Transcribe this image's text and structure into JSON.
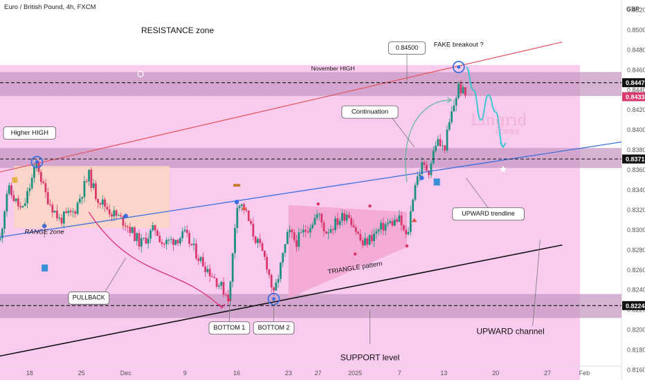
{
  "header": {
    "symbol_title": "Euro / British Pound, 4h, FXCM",
    "currency": "GBP"
  },
  "chart_data": {
    "type": "candlestick",
    "title": "Euro / British Pound, 4h, FXCM",
    "y_unit": "GBP",
    "ylim": [
      0.815,
      0.853
    ],
    "y_ticks": [
      "0.85200",
      "0.85000",
      "0.84800",
      "0.84600",
      "0.84400",
      "0.84200",
      "0.84000",
      "0.83800",
      "0.83600",
      "0.83400",
      "0.83200",
      "0.83000",
      "0.82800",
      "0.82600",
      "0.82400",
      "0.82200",
      "0.82000",
      "0.81800",
      "0.81600"
    ],
    "x_ticks": [
      "18",
      "25",
      "Dec",
      "9",
      "16",
      "23",
      "27",
      "2025",
      "7",
      "13",
      "20",
      "27",
      "Feb"
    ],
    "x_range": [
      "2024-11-14",
      "2025-02-06"
    ],
    "price_levels": [
      {
        "label": "0.84473",
        "value": 0.84473,
        "style": "dashed"
      },
      {
        "label": "0.83710",
        "value": 0.8371,
        "style": "dashed"
      },
      {
        "label": "0.82244",
        "value": 0.82244,
        "style": "dashed"
      }
    ],
    "current_price": {
      "label": "0.84333",
      "value": 0.84333
    },
    "zones": [
      {
        "name": "resistance",
        "from": 0.8434,
        "to": 0.8458
      },
      {
        "name": "middle",
        "from": 0.8362,
        "to": 0.8382
      },
      {
        "name": "support",
        "from": 0.8212,
        "to": 0.8236
      }
    ],
    "price_path": [
      [
        "2024-11-14",
        0.829
      ],
      [
        "2024-11-15",
        0.8342
      ],
      [
        "2024-11-17",
        0.8318
      ],
      [
        "2024-11-19",
        0.8368
      ],
      [
        "2024-11-20",
        0.8338
      ],
      [
        "2024-11-22",
        0.831
      ],
      [
        "2024-11-24",
        0.8318
      ],
      [
        "2024-11-26",
        0.8355
      ],
      [
        "2024-11-27",
        0.8334
      ],
      [
        "2024-11-29",
        0.8318
      ],
      [
        "2024-12-01",
        0.8307
      ],
      [
        "2024-12-03",
        0.8286
      ],
      [
        "2024-12-05",
        0.8302
      ],
      [
        "2024-12-06",
        0.8286
      ],
      [
        "2024-12-09",
        0.8295
      ],
      [
        "2024-12-11",
        0.8271
      ],
      [
        "2024-12-13",
        0.8252
      ],
      [
        "2024-12-15",
        0.8232
      ],
      [
        "2024-12-16",
        0.8328
      ],
      [
        "2024-12-17",
        0.8322
      ],
      [
        "2024-12-18",
        0.83
      ],
      [
        "2024-12-20",
        0.8268
      ],
      [
        "2024-12-21",
        0.8234
      ],
      [
        "2024-12-23",
        0.8298
      ],
      [
        "2024-12-24",
        0.8288
      ],
      [
        "2024-12-27",
        0.8316
      ],
      [
        "2024-12-28",
        0.8298
      ],
      [
        "2024-12-31",
        0.8318
      ],
      [
        "2025-01-02",
        0.8285
      ],
      [
        "2025-01-05",
        0.8305
      ],
      [
        "2025-01-07",
        0.831
      ],
      [
        "2025-01-08",
        0.829
      ],
      [
        "2025-01-09",
        0.8345
      ],
      [
        "2025-01-10",
        0.8364
      ],
      [
        "2025-01-11",
        0.836
      ],
      [
        "2025-01-12",
        0.839
      ],
      [
        "2025-01-13",
        0.838
      ],
      [
        "2025-01-14",
        0.8415
      ],
      [
        "2025-01-15",
        0.8444
      ],
      [
        "2025-01-16",
        0.8433
      ]
    ],
    "forecast_path": [
      [
        "2025-01-16",
        0.8463
      ],
      [
        "2025-01-17",
        0.844
      ],
      [
        "2025-01-18",
        0.841
      ],
      [
        "2025-01-19",
        0.8435
      ],
      [
        "2025-01-20",
        0.8418
      ],
      [
        "2025-01-21",
        0.8383
      ]
    ],
    "lines": [
      {
        "name": "resistance-trendline",
        "from": [
          "2024-11-14",
          0.8358
        ],
        "to": [
          "2025-01-29",
          0.8488
        ]
      },
      {
        "name": "upward-trendline",
        "from": [
          "2024-11-14",
          0.8293
        ],
        "to": [
          "2025-02-06",
          0.8388
        ]
      },
      {
        "name": "support-trendline",
        "from": [
          "2024-11-14",
          0.8174
        ],
        "to": [
          "2025-01-29",
          0.8285
        ]
      }
    ],
    "triangle": [
      [
        "2024-12-23",
        0.8232
      ],
      [
        "2024-12-23",
        0.8325
      ],
      [
        "2025-01-08",
        0.8318
      ],
      [
        "2025-01-08",
        0.8283
      ]
    ],
    "annotations": [
      {
        "text": "RESISTANCE zone",
        "date": "2024-12-08",
        "price": 0.8499
      },
      {
        "text": "Higher HIGH",
        "date": "2024-11-18",
        "price": 0.8397,
        "boxed": true
      },
      {
        "text": "November HIGH",
        "date": "2024-12-29",
        "price": 0.8461,
        "boxed": false
      },
      {
        "text": "0.84500",
        "date": "2025-01-08",
        "price": 0.8482,
        "boxed": true
      },
      {
        "text": "FAKE breakout ?",
        "date": "2025-01-15",
        "price": 0.8485,
        "boxed": false
      },
      {
        "text": "Continuation",
        "date": "2025-01-03",
        "price": 0.8418,
        "boxed": true
      },
      {
        "text": "RANGE zone",
        "date": "2024-11-20",
        "price": 0.8298,
        "italic": true
      },
      {
        "text": "PULLBACK",
        "date": "2024-11-26",
        "price": 0.8232,
        "boxed": true
      },
      {
        "text": "BOTTOM 1",
        "date": "2024-12-15",
        "price": 0.8202,
        "boxed": true
      },
      {
        "text": "BOTTOM 2",
        "date": "2024-12-21",
        "price": 0.8202,
        "boxed": true
      },
      {
        "text": "TRIANGLE pattern",
        "date": "2025-01-01",
        "price": 0.8262,
        "rotated": true
      },
      {
        "text": "UPWARD trendline",
        "date": "2025-01-19",
        "price": 0.8316,
        "boxed": true
      },
      {
        "text": "UPWARD channel",
        "date": "2025-01-22",
        "price": 0.8198,
        "boxed": false
      },
      {
        "text": "SUPPORT level",
        "date": "2025-01-03",
        "price": 0.8172,
        "boxed": false
      }
    ]
  },
  "watermark": {
    "line1": "Lingrid",
    "line2": "FOREX"
  },
  "colors": {
    "background": "#f9cbee",
    "zone": "#c79ac4",
    "candle_up": "#1e9080",
    "candle_down": "#d8386c",
    "resistance_line": "#e4505a",
    "trendline": "#3a6fe0",
    "channel_line": "#111111",
    "pullback_arrow": "#d6337a",
    "continuation_arrow": "#5fb89a",
    "forecast": "#2ec6cf",
    "current_price_tag": "#d8386c",
    "triangle_fill": "#f2a4cf",
    "range_fill": "#fbd7c2"
  }
}
